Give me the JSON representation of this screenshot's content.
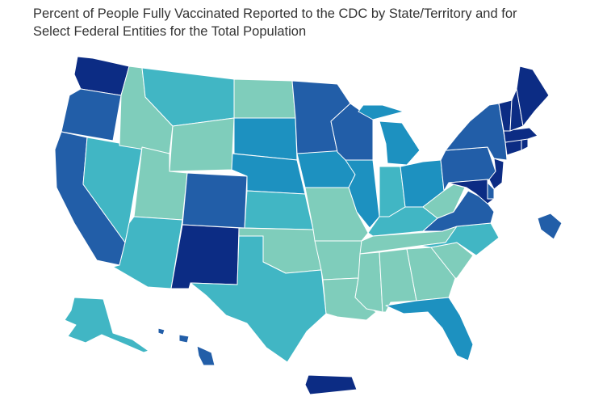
{
  "title": {
    "line1": "Percent of People Fully Vaccinated Reported to the CDC by State/Territory and for",
    "line2": "Select Federal Entities for the Total Population"
  },
  "colors": {
    "tier1": "#7fcdbb",
    "tier2": "#41b6c4",
    "tier3": "#1d91c0",
    "tier4": "#225ea8",
    "tier5": "#0c2c84",
    "background": "#ffffff",
    "border": "#ffffff"
  },
  "states": [
    {
      "id": "WA",
      "tier": "tier5"
    },
    {
      "id": "OR",
      "tier": "tier4"
    },
    {
      "id": "CA",
      "tier": "tier4"
    },
    {
      "id": "ID",
      "tier": "tier1"
    },
    {
      "id": "NV",
      "tier": "tier2"
    },
    {
      "id": "MT",
      "tier": "tier2"
    },
    {
      "id": "WY",
      "tier": "tier1"
    },
    {
      "id": "UT",
      "tier": "tier1"
    },
    {
      "id": "AZ",
      "tier": "tier2"
    },
    {
      "id": "CO",
      "tier": "tier4"
    },
    {
      "id": "NM",
      "tier": "tier5"
    },
    {
      "id": "ND",
      "tier": "tier1"
    },
    {
      "id": "SD",
      "tier": "tier3"
    },
    {
      "id": "NE",
      "tier": "tier3"
    },
    {
      "id": "KS",
      "tier": "tier2"
    },
    {
      "id": "OK",
      "tier": "tier1"
    },
    {
      "id": "TX",
      "tier": "tier2"
    },
    {
      "id": "MN",
      "tier": "tier4"
    },
    {
      "id": "IA",
      "tier": "tier3"
    },
    {
      "id": "MO",
      "tier": "tier1"
    },
    {
      "id": "AR",
      "tier": "tier1"
    },
    {
      "id": "LA",
      "tier": "tier1"
    },
    {
      "id": "WI",
      "tier": "tier4"
    },
    {
      "id": "IL",
      "tier": "tier3"
    },
    {
      "id": "MI",
      "tier": "tier3"
    },
    {
      "id": "IN",
      "tier": "tier2"
    },
    {
      "id": "OH",
      "tier": "tier3"
    },
    {
      "id": "KY",
      "tier": "tier2"
    },
    {
      "id": "TN",
      "tier": "tier1"
    },
    {
      "id": "MS",
      "tier": "tier1"
    },
    {
      "id": "AL",
      "tier": "tier1"
    },
    {
      "id": "GA",
      "tier": "tier1"
    },
    {
      "id": "FL",
      "tier": "tier3"
    },
    {
      "id": "SC",
      "tier": "tier1"
    },
    {
      "id": "NC",
      "tier": "tier2"
    },
    {
      "id": "VA",
      "tier": "tier4"
    },
    {
      "id": "WV",
      "tier": "tier1"
    },
    {
      "id": "PA",
      "tier": "tier4"
    },
    {
      "id": "NY",
      "tier": "tier4"
    },
    {
      "id": "NJ",
      "tier": "tier5"
    },
    {
      "id": "DE",
      "tier": "tier4"
    },
    {
      "id": "MD",
      "tier": "tier5"
    },
    {
      "id": "CT",
      "tier": "tier5"
    },
    {
      "id": "RI",
      "tier": "tier5"
    },
    {
      "id": "MA",
      "tier": "tier5"
    },
    {
      "id": "VT",
      "tier": "tier5"
    },
    {
      "id": "NH",
      "tier": "tier5"
    },
    {
      "id": "ME",
      "tier": "tier5"
    },
    {
      "id": "AK",
      "tier": "tier2"
    },
    {
      "id": "HI",
      "tier": "tier4"
    },
    {
      "id": "PR",
      "tier": "tier5"
    },
    {
      "id": "Federal-entity",
      "tier": "tier4"
    }
  ]
}
